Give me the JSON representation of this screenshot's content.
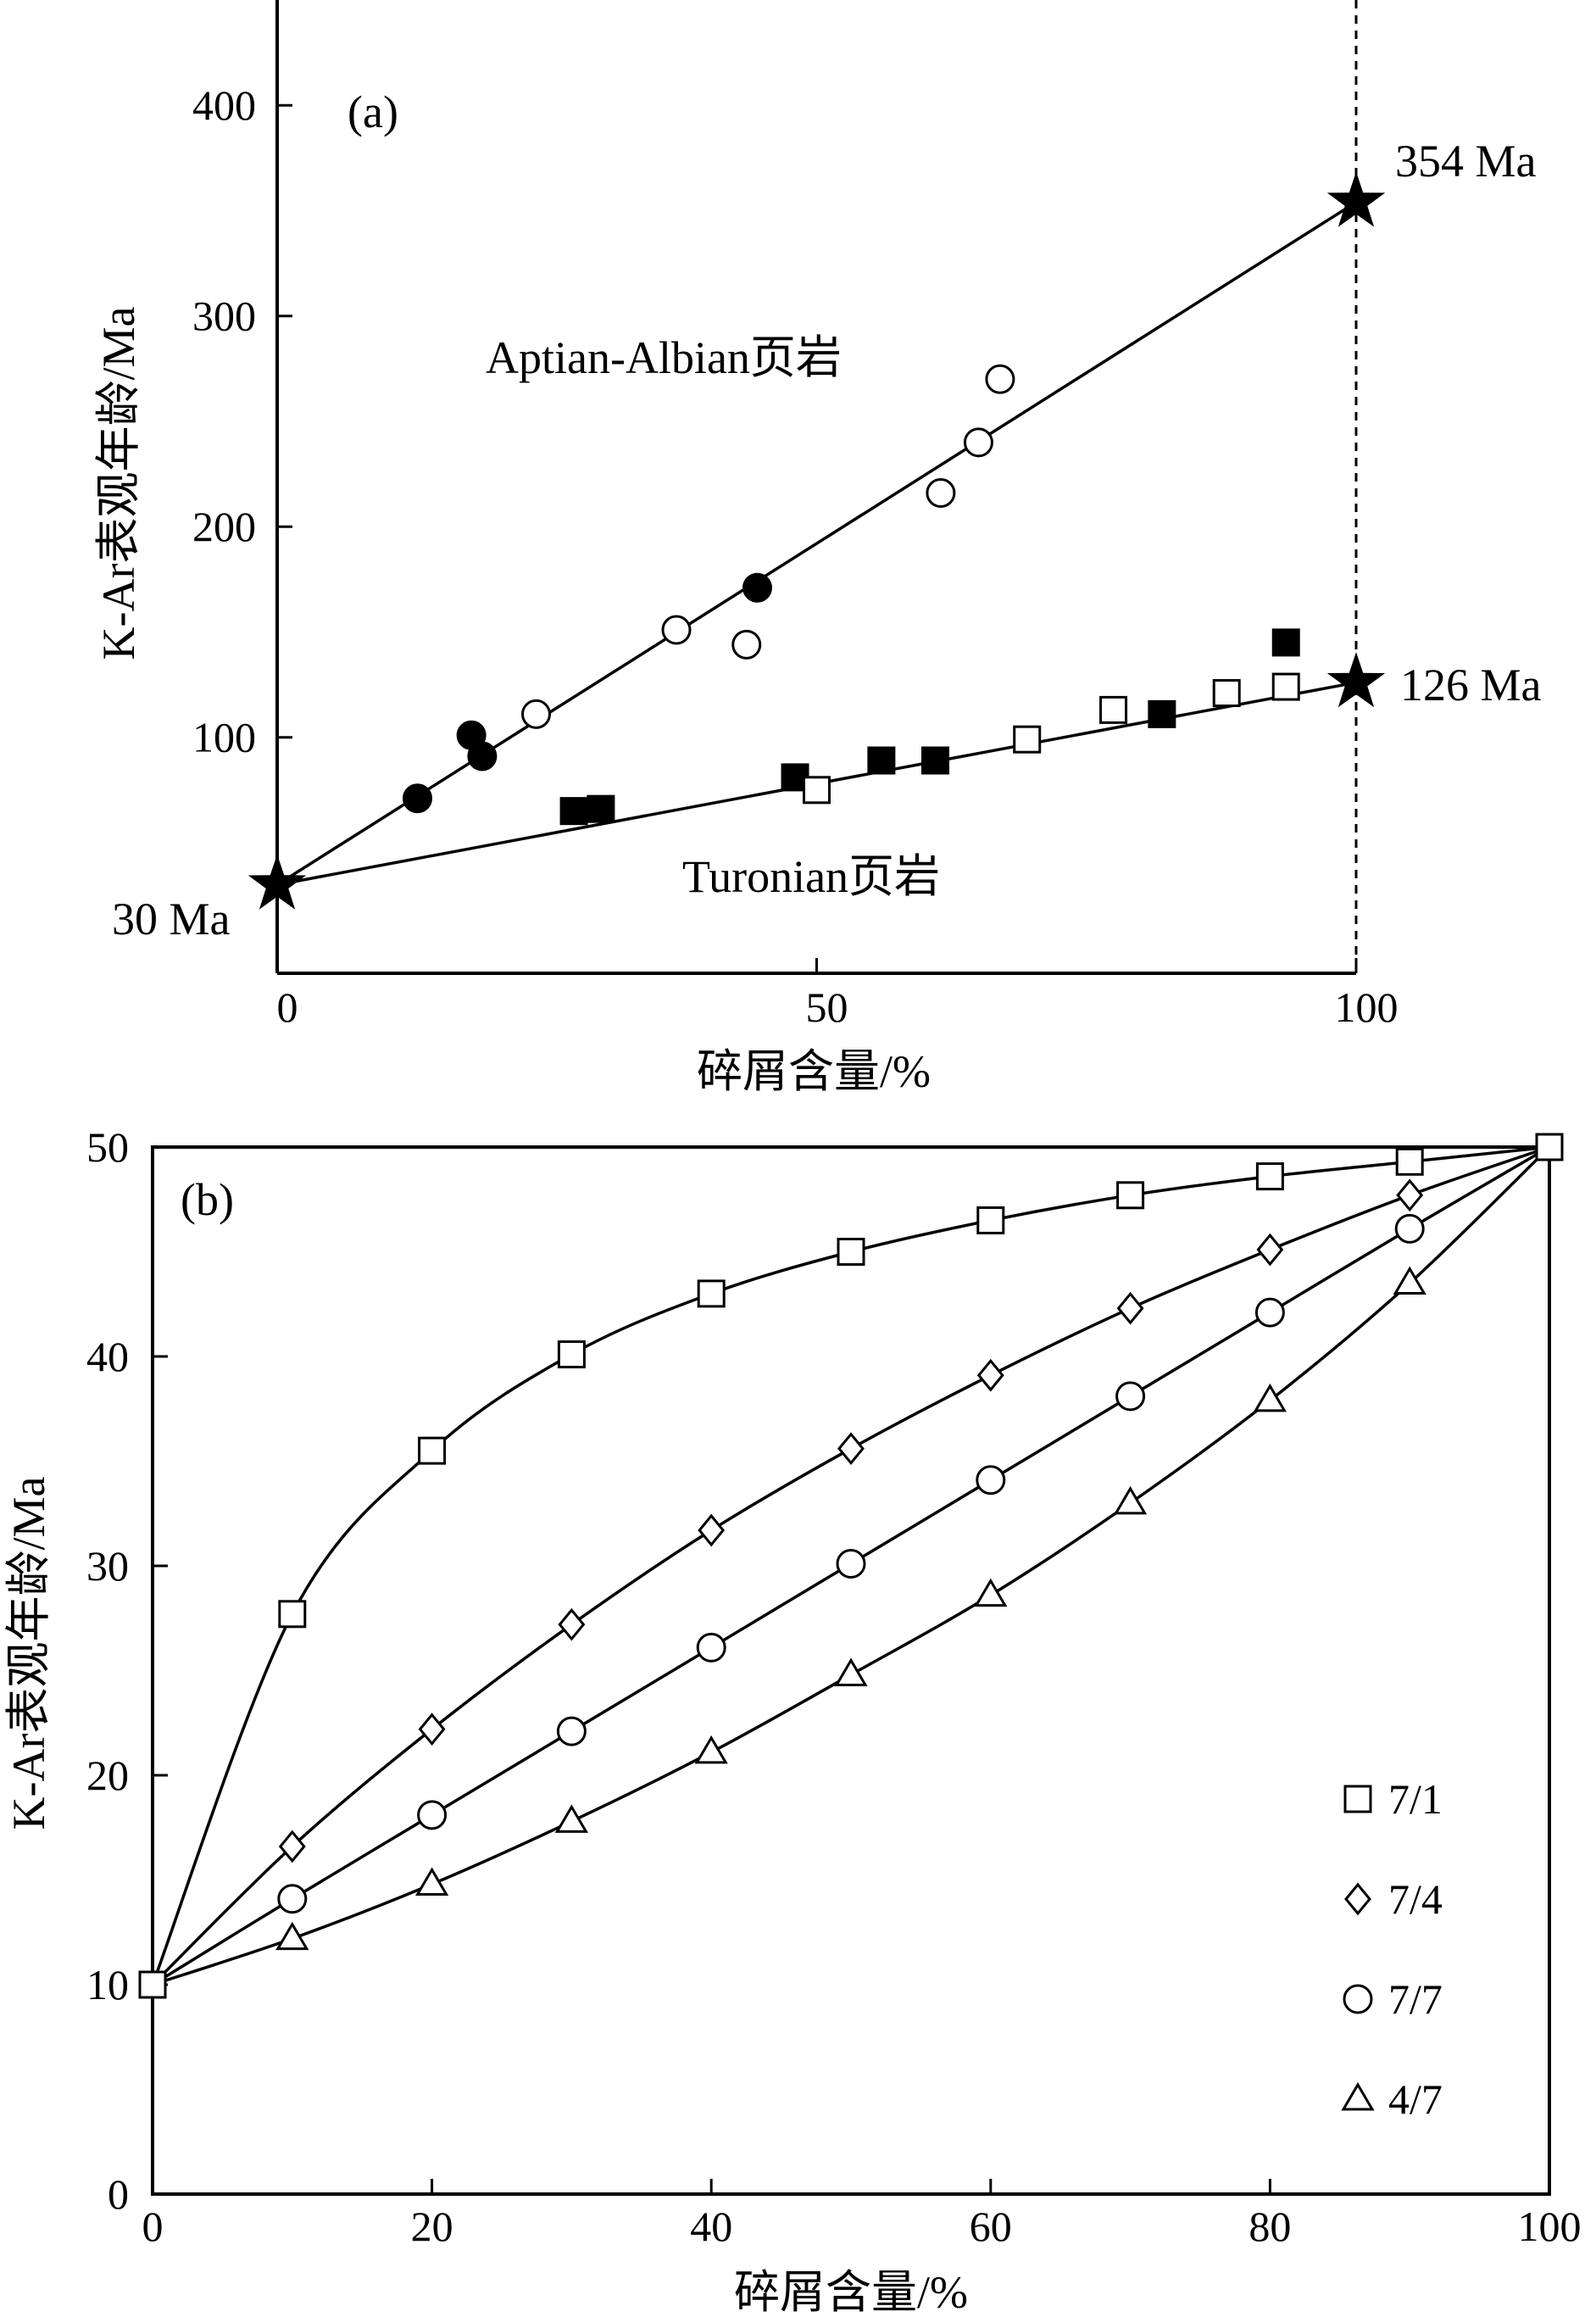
{
  "chart_data": [
    {
      "panel_label": "(a)",
      "type": "scatter",
      "xlabel": "碎屑含量/%",
      "ylabel": "K-Ar表观年龄/Ma",
      "xlim": [
        0,
        100
      ],
      "ylim": [
        -12,
        450
      ],
      "xticks": [
        0,
        50,
        100
      ],
      "yticks": [
        100,
        200,
        300,
        400
      ],
      "grid": false,
      "series": [
        {
          "name": "",
          "marker": "circle-filled",
          "points": [
            [
              13,
              71
            ],
            [
              18,
              101
            ],
            [
              19,
              91
            ],
            [
              44.5,
              171
            ]
          ]
        },
        {
          "name": "",
          "marker": "circle-open",
          "points": [
            [
              24,
              111
            ],
            [
              37,
              151
            ],
            [
              43.5,
              144
            ],
            [
              61.5,
              216
            ],
            [
              65,
              240
            ],
            [
              67,
              270
            ]
          ]
        },
        {
          "name": "",
          "marker": "square-filled",
          "points": [
            [
              27.5,
              65
            ],
            [
              30,
              66
            ],
            [
              48,
              81
            ],
            [
              56,
              89
            ],
            [
              61,
              89
            ],
            [
              82,
              111
            ],
            [
              93.5,
              145
            ]
          ]
        },
        {
          "name": "",
          "marker": "square-open",
          "points": [
            [
              50,
              75
            ],
            [
              69.5,
              99
            ],
            [
              77.5,
              113
            ],
            [
              88,
              121
            ],
            [
              93.5,
              124
            ]
          ]
        }
      ],
      "lines": [
        {
          "label": "Aptian-Albian页岩",
          "from": [
            0,
            30
          ],
          "to": [
            100,
            354
          ]
        },
        {
          "label": "Turonian页岩",
          "from": [
            0,
            30
          ],
          "to": [
            100,
            126
          ]
        }
      ],
      "stars": [
        {
          "x": 0,
          "y": 30,
          "label": "30 Ma"
        },
        {
          "x": 100,
          "y": 354,
          "label": "354 Ma"
        },
        {
          "x": 100,
          "y": 126,
          "label": "126 Ma"
        }
      ],
      "vertical_reference": {
        "x": 100,
        "style": "dashed"
      }
    },
    {
      "panel_label": "(b)",
      "type": "line",
      "xlabel": "碎屑含量/%",
      "ylabel": "K-Ar表观年龄/Ma",
      "xlim": [
        0,
        100
      ],
      "ylim": [
        0,
        50
      ],
      "xticks": [
        0,
        20,
        40,
        60,
        80,
        100
      ],
      "yticks": [
        0,
        10,
        20,
        30,
        40,
        50
      ],
      "grid": false,
      "legend_position": "bottom-right",
      "x": [
        0,
        10,
        20,
        30,
        40,
        50,
        60,
        70,
        80,
        90,
        100
      ],
      "series": [
        {
          "name": "7/1",
          "marker": "square",
          "values": [
            10,
            27.7,
            35.5,
            40.1,
            43.0,
            45.0,
            46.5,
            47.7,
            48.6,
            49.3,
            50
          ]
        },
        {
          "name": "7/4",
          "marker": "diamond",
          "values": [
            10,
            16.6,
            22.2,
            27.2,
            31.7,
            35.6,
            39.1,
            42.3,
            45.1,
            47.7,
            50
          ]
        },
        {
          "name": "7/7",
          "marker": "circle",
          "values": [
            10,
            14.1,
            18.1,
            22.1,
            26.1,
            30.1,
            34.1,
            38.1,
            42.1,
            46.1,
            50
          ]
        },
        {
          "name": "4/7",
          "marker": "triangle",
          "values": [
            10,
            12.2,
            14.8,
            17.8,
            21.1,
            24.8,
            28.6,
            33.0,
            37.9,
            43.5,
            50
          ]
        }
      ]
    }
  ]
}
